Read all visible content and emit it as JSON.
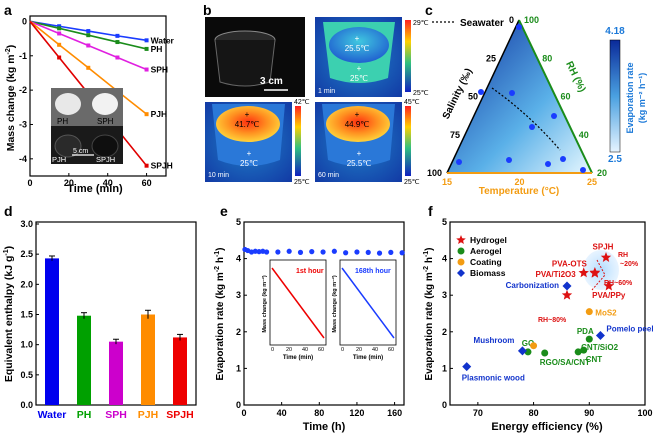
{
  "panels": {
    "a": {
      "letter": "a",
      "xlabel": "Time (min)",
      "ylabel": "Mass change (kg m",
      "ylabel_sup": "-2",
      "ylabel_end": ")",
      "inset": {
        "tl": "PH",
        "tr": "SPH",
        "bl": "PJH",
        "br": "SPJH",
        "scale": "5 cm"
      }
    },
    "b": {
      "letter": "b",
      "photo_scale": "3 cm",
      "ir1": {
        "top": "29℃",
        "bottom": "25℃",
        "upper": "25.5℃",
        "lower": "25℃",
        "time": "1 min"
      },
      "ir2": {
        "top": "42℃",
        "bottom": "25℃",
        "upper": "41.7℃",
        "lower": "25℃",
        "time": "10 min"
      },
      "ir3": {
        "top": "45℃",
        "bottom": "25℃",
        "upper": "44.9℃",
        "lower": "25.5℃",
        "time": "60 min"
      }
    },
    "c": {
      "letter": "c",
      "legend": "Seawater",
      "salinity_label": "Salinity (‰)",
      "rh_label": "RH (%)",
      "temp_label": "Temperature (°C)",
      "cbar_label": "Evaporation rate",
      "cbar_units": "(kg m⁻² h⁻¹)",
      "cbar_max": "4.18",
      "cbar_min": "2.5",
      "sal_ticks": [
        "0",
        "25",
        "50",
        "75",
        "100"
      ],
      "rh_ticks": [
        "100",
        "80",
        "60",
        "40",
        "20"
      ],
      "temp_ticks": [
        "15",
        "20",
        "25"
      ]
    },
    "d": {
      "letter": "d",
      "ylabel": "Equivalent enthalpy (kJ g",
      "ylabel_sup": "-1",
      "ylabel_end": ")"
    },
    "e": {
      "letter": "e",
      "xlabel": "Time (h)",
      "ylabel": "Evaporation rate (kg m",
      "ylabel_sup": "-2",
      "ylabel_mid": " h",
      "ylabel_sup2": "-1",
      "ylabel_end": ")",
      "inset1": {
        "title": "1st hour",
        "ylabel": "Mass change (kg m⁻²)",
        "xlabel": "Time (min)",
        "xticks": [
          "0",
          "20",
          "40",
          "60"
        ],
        "yticks": [
          "0",
          "-1",
          "-2",
          "-3",
          "-4"
        ]
      },
      "inset2": {
        "title": "168th hour",
        "ylabel": "Mass change (kg m⁻²)",
        "xlabel": "Time (min)",
        "xticks": [
          "0",
          "20",
          "40",
          "60"
        ],
        "yticks": [
          "0",
          "-1",
          "-2",
          "-3",
          "-4"
        ]
      }
    },
    "f": {
      "letter": "f",
      "xlabel": "Energy efficiency (%)",
      "ylabel": "Evaporation rate (kg m",
      "ylabel_sup": "-2",
      "ylabel_mid": " h",
      "ylabel_sup2": "-1",
      "ylabel_end": ")",
      "rh_labels": {
        "rh20": "RH",
        "rh20b": "~20%",
        "rh60": "RH~60%",
        "rh80": "RH~80%"
      }
    }
  },
  "chart_data": [
    {
      "panel": "a",
      "type": "line",
      "xlabel": "Time (min)",
      "ylabel": "Mass change (kg m-2)",
      "xlim": [
        0,
        70
      ],
      "ylim": [
        -4.5,
        0.1
      ],
      "xticks": [
        0,
        20,
        40,
        60
      ],
      "yticks": [
        0,
        -1,
        -2,
        -3,
        -4
      ],
      "x": [
        0,
        15,
        30,
        45,
        60
      ],
      "series": [
        {
          "name": "Water",
          "color": "#1a3cff",
          "values": [
            0,
            -0.14,
            -0.28,
            -0.42,
            -0.55
          ]
        },
        {
          "name": "PH",
          "color": "#1a8c1a",
          "values": [
            0,
            -0.2,
            -0.4,
            -0.6,
            -0.8
          ]
        },
        {
          "name": "SPH",
          "color": "#e020e0",
          "values": [
            0,
            -0.35,
            -0.7,
            -1.05,
            -1.4
          ]
        },
        {
          "name": "PJH",
          "color": "#ff8c00",
          "values": [
            0,
            -0.68,
            -1.35,
            -2.03,
            -2.7
          ]
        },
        {
          "name": "SPJH",
          "color": "#e00000",
          "values": [
            0,
            -1.05,
            -2.1,
            -3.15,
            -4.2
          ]
        }
      ]
    },
    {
      "panel": "c",
      "type": "scatter",
      "axes": [
        "Salinity (‰)",
        "RH (%)",
        "Temperature (°C)"
      ],
      "points": [
        {
          "salinity": 0,
          "rh": 100,
          "temp": 15
        },
        {
          "salinity": 25,
          "rh": 80,
          "temp": 20
        },
        {
          "salinity": 50,
          "rh": 60,
          "temp": 25
        },
        {
          "salinity": 75,
          "rh": 40,
          "temp": 15
        },
        {
          "salinity": 100,
          "rh": 20,
          "temp": 20
        }
      ],
      "seawater_label": "Seawater"
    },
    {
      "panel": "d",
      "type": "bar",
      "ylabel": "Equivalent enthalpy (kJ g-1)",
      "ylim": [
        0,
        3.0
      ],
      "yticks": [
        "0.0",
        "0.5",
        "1.0",
        "1.5",
        "2.0",
        "2.5",
        "3.0"
      ],
      "categories": [
        "Water",
        "PH",
        "SPH",
        "PJH",
        "SPJH"
      ],
      "values": [
        2.43,
        1.48,
        1.05,
        1.5,
        1.12
      ],
      "errors": [
        0.04,
        0.05,
        0.04,
        0.07,
        0.05
      ],
      "colors": [
        "#0000ee",
        "#00a000",
        "#cc00cc",
        "#ff8c00",
        "#ee0000"
      ]
    },
    {
      "panel": "e",
      "type": "scatter",
      "xlabel": "Time (h)",
      "ylabel": "Evaporation rate (kg m-2 h-1)",
      "xlim": [
        0,
        170
      ],
      "ylim": [
        0,
        5
      ],
      "xticks": [
        0,
        40,
        80,
        120,
        160
      ],
      "yticks": [
        0,
        1,
        2,
        3,
        4,
        5
      ],
      "x": [
        1,
        4,
        8,
        12,
        16,
        20,
        24,
        36,
        48,
        60,
        72,
        84,
        96,
        108,
        120,
        132,
        144,
        156,
        168
      ],
      "values": [
        4.25,
        4.22,
        4.18,
        4.2,
        4.19,
        4.2,
        4.18,
        4.18,
        4.2,
        4.17,
        4.19,
        4.18,
        4.2,
        4.16,
        4.18,
        4.17,
        4.15,
        4.17,
        4.16
      ]
    },
    {
      "panel": "f",
      "type": "scatter",
      "xlabel": "Energy efficiency (%)",
      "ylabel": "Evaporation rate (kg m-2 h-1)",
      "xlim": [
        65,
        100
      ],
      "ylim": [
        0,
        5
      ],
      "xticks": [
        70,
        80,
        90,
        100
      ],
      "yticks": [
        0,
        1,
        2,
        3,
        4,
        5
      ],
      "legend": [
        "Hydrogel",
        "Aerogel",
        "Coating",
        "Biomass"
      ],
      "series": [
        {
          "name": "Hydrogel",
          "color": "#dd1111",
          "marker": "star",
          "points": [
            {
              "label": "SPJH",
              "x": 93,
              "y": 4.03
            },
            {
              "label": "PVA-OTS",
              "x": 91,
              "y": 3.62
            },
            {
              "label": "PVA/Ti2O3",
              "x": 89,
              "y": 3.61
            },
            {
              "label": "PVA/PPy",
              "x": 93.5,
              "y": 3.25
            },
            {
              "label": "",
              "x": 91,
              "y": 3.6
            },
            {
              "label": "",
              "x": 86,
              "y": 3.0
            }
          ]
        },
        {
          "name": "Aerogel",
          "color": "#1a8c1a",
          "marker": "circle",
          "points": [
            {
              "label": "GO",
              "x": 79,
              "y": 1.45
            },
            {
              "label": "RGO/SA/CNT",
              "x": 82,
              "y": 1.42
            },
            {
              "label": "CNT/SiO2",
              "x": 88,
              "y": 1.45
            },
            {
              "label": "CNT",
              "x": 89,
              "y": 1.5
            },
            {
              "label": "PDA",
              "x": 90,
              "y": 1.8
            }
          ]
        },
        {
          "name": "Coating",
          "color": "#f39c12",
          "marker": "circle",
          "points": [
            {
              "label": "MoS2",
              "x": 90,
              "y": 2.55
            },
            {
              "label": "",
              "x": 80,
              "y": 1.62
            }
          ]
        },
        {
          "name": "Biomass",
          "color": "#1133cc",
          "marker": "diamond",
          "points": [
            {
              "label": "Plasmonic wood",
              "x": 68,
              "y": 1.05
            },
            {
              "label": "Mushroom",
              "x": 78,
              "y": 1.48
            },
            {
              "label": "Pomelo peel",
              "x": 92,
              "y": 1.9
            },
            {
              "label": "Carbonization",
              "x": 86,
              "y": 3.25
            }
          ]
        }
      ]
    }
  ]
}
